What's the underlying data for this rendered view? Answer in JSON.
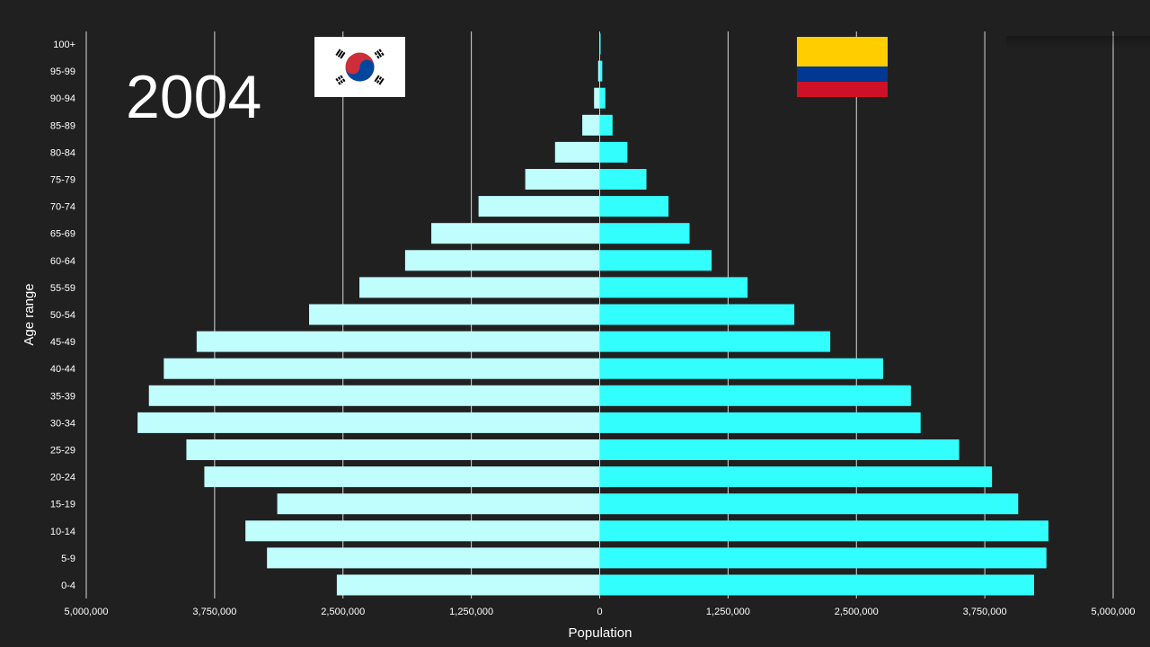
{
  "year": "2004",
  "flags": {
    "left": {
      "icon": "south-korea-flag-icon"
    },
    "right": {
      "icon": "colombia-flag-icon",
      "colors": [
        "#ffcd00",
        "#003893",
        "#ce1126"
      ]
    }
  },
  "chart_data": {
    "type": "bar",
    "orientation": "horizontal-population-pyramid",
    "xlabel": "Population",
    "ylabel": "Age range",
    "xlim": [
      -5000000,
      5000000
    ],
    "x_tick_values": [
      -5000000,
      -3750000,
      -2500000,
      -1250000,
      0,
      1250000,
      2500000,
      3750000,
      5000000
    ],
    "x_tick_labels": [
      "5,000,000",
      "3,750,000",
      "2,500,000",
      "1,250,000",
      "0",
      "1,250,000",
      "2,500,000",
      "3,750,000",
      "5,000,000"
    ],
    "grid": true,
    "categories": [
      "100+",
      "95-99",
      "90-94",
      "85-89",
      "80-84",
      "75-79",
      "70-74",
      "65-69",
      "60-64",
      "55-59",
      "50-54",
      "45-49",
      "40-44",
      "35-39",
      "30-34",
      "25-29",
      "20-24",
      "15-19",
      "10-14",
      "5-9",
      "0-4"
    ],
    "series": [
      {
        "side": "left",
        "color": "#c0fefe",
        "values": [
          3000,
          15000,
          55000,
          170000,
          435000,
          725000,
          1180000,
          1640000,
          1895000,
          2340000,
          2830000,
          3925000,
          4245000,
          4390000,
          4500000,
          4025000,
          3850000,
          3140000,
          3450000,
          3240000,
          2560000
        ]
      },
      {
        "side": "right",
        "color": "#33fefe",
        "values": [
          5000,
          25000,
          55000,
          125000,
          270000,
          455000,
          670000,
          875000,
          1090000,
          1440000,
          1895000,
          2245000,
          2760000,
          3030000,
          3125000,
          3500000,
          3820000,
          4075000,
          4370000,
          4350000,
          4230000
        ]
      }
    ]
  }
}
